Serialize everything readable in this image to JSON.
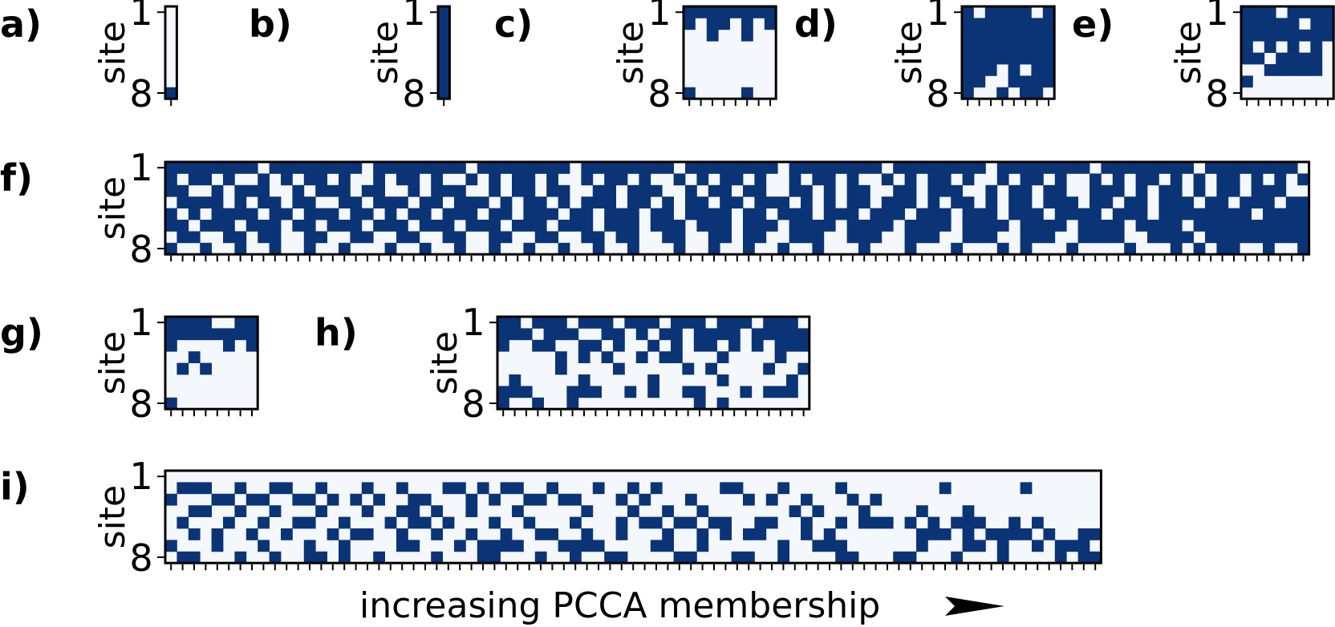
{
  "chart_data": {
    "type": "heatmap",
    "xlabel": "increasing PCCA membership",
    "colors": {
      "occupied": "#0b3476",
      "empty": "#f4f8fd",
      "frame": "#000000"
    },
    "panels": [
      {
        "label": "a)",
        "ylabel": "site",
        "yticks": [
          "1",
          "8"
        ],
        "rows": [
          "0",
          "0",
          "0",
          "0",
          "0",
          "0",
          "0",
          "1"
        ]
      },
      {
        "label": "b)",
        "ylabel": "site",
        "yticks": [
          "1",
          "8"
        ],
        "rows": [
          "1",
          "1",
          "1",
          "1",
          "1",
          "1",
          "1",
          "1"
        ]
      },
      {
        "label": "c)",
        "ylabel": "site",
        "yticks": [
          "1",
          "8"
        ],
        "rows": [
          "11111111",
          "10110101",
          "00100100",
          "00000000",
          "00000000",
          "00000000",
          "00000000",
          "10000100"
        ]
      },
      {
        "label": "d)",
        "ylabel": "site",
        "yticks": [
          "1",
          "8"
        ],
        "rows": [
          "10111101",
          "11111111",
          "11111111",
          "11111111",
          "11111111",
          "11101011",
          "11001111",
          "10010110"
        ]
      },
      {
        "label": "e)",
        "ylabel": "site",
        "yticks": [
          "1",
          "8"
        ],
        "rows": [
          "11101111",
          "11111011",
          "11111111",
          "10101010",
          "11011110",
          "00111110",
          "10000000",
          "00000000"
        ]
      },
      {
        "label": "f)",
        "ylabel": "site",
        "yticks": [
          "1",
          "8"
        ],
        "rows": [
          "111111110111111110111111110111111110111111110111111110111111110111111110111111110111111110111111110",
          "101101001010110100101101001010110100101101001010110100101101001010110100101101001010110101011010101",
          "110010111001011101100101110010110110011011100101101100110101100110111001011011001110101101011011100",
          "011110101101100110111011011101011010111011010110110111010101101110101101011011101101101110110111011",
          "101011110110111011010110111011011101101110110111101101110111011101110111011101111011101111111101111",
          "110111011101101110111011101110111011101110111011101110111101111011110111101111011110111101111111111",
          "011001101100110011001100110011001100110110011001101100111001110011100111001110011110011110111111111",
          "100100100100100100010010010010010010010010001001001001001000100010001000101000100001000101011001001"
        ]
      },
      {
        "label": "g)",
        "ylabel": "site",
        "yticks": [
          "1",
          "8"
        ],
        "rows": [
          "11110011",
          "11111111",
          "10000101",
          "00100000",
          "01010000",
          "00000000",
          "00000000",
          "10000000"
        ]
      },
      {
        "label": "h)",
        "ylabel": "site",
        "yticks": [
          "1",
          "8"
        ],
        "rows": [
          "110111011101110111011101110",
          "111011100110101101111011111",
          "100110011010010101101010111",
          "000001010100101100010000100",
          "000001000010000010100001001",
          "010000010000010000010000010",
          "111000111001010011000101110",
          "100100100000000001010000000"
        ]
      },
      {
        "label": "i)",
        "ylabel": "site",
        "yticks": [
          "1",
          "8"
        ],
        "rows": [
          "000000000000000000000000000000000000000000000000000000000000000000000000000000000",
          "011100100110010001001000110101100100010010100000110001000010000000010000001000000",
          "100011011001101010100110001010011011000101000100001010010001010000000000000000000",
          "001100100100010001001101001000100000100010010010000000101000100001000100000000000",
          "010001001001100100010110100010010001000101101101100110010010111010101110010100000",
          "001010010010001011001001001001001100100100010010101100010100000001110101111010011",
          "100010001000100100001100010111100011110000110010000001001110000001000110100101110",
          "011000100100110100100001000110001001001100001100011001000011000110001000100001011"
        ]
      }
    ]
  }
}
